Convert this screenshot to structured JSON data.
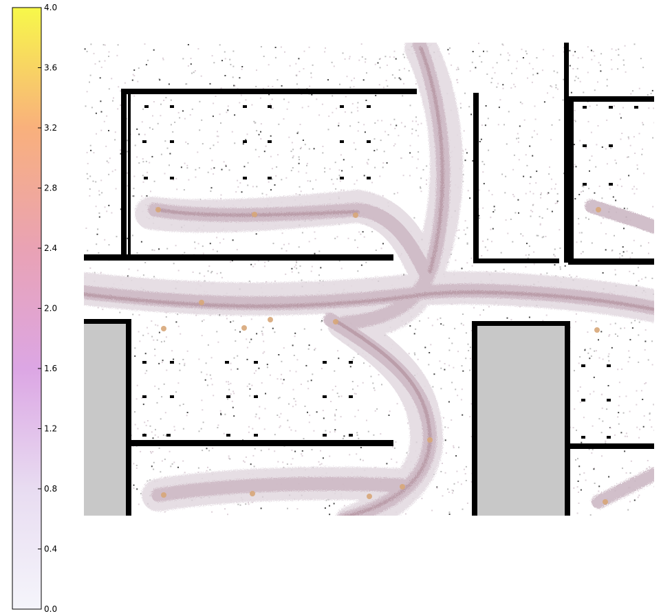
{
  "chart_data": {
    "type": "heatmap",
    "title": "",
    "xlabel": "",
    "ylabel": "",
    "background": "floor-plan occupancy map (walls black, blocked areas grey)",
    "colorbar": {
      "vmin": 0.0,
      "vmax": 4.0,
      "ticks": [
        "0.0",
        "0.4",
        "0.8",
        "1.2",
        "1.6",
        "2.0",
        "2.4",
        "2.8",
        "3.2",
        "3.6",
        "4.0"
      ],
      "colormap": [
        {
          "value": 0.0,
          "color": "#f5f5fb"
        },
        {
          "value": 0.8,
          "color": "#e8dcf1"
        },
        {
          "value": 1.6,
          "color": "#dca6e4"
        },
        {
          "value": 2.4,
          "color": "#e9a2b4"
        },
        {
          "value": 3.2,
          "color": "#f9b07c"
        },
        {
          "value": 4.0,
          "color": "#f7f84a"
        }
      ]
    },
    "colors": {
      "wall": "#000000",
      "blocked": "#c8c8c8",
      "trajectory_low": "#d2c4cf",
      "trajectory_mid": "#bfa7b2",
      "trajectory_high": "#d7a678"
    }
  }
}
